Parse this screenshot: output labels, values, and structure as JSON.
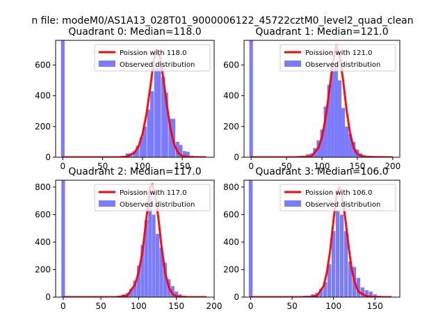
{
  "figure": {
    "suptitle": "n file: modeM0/AS1A13_028T01_9000006122_45722cztM0_level2_quad_clean"
  },
  "colors": {
    "bars": "#7b7bff",
    "curve": "#ff0000",
    "axes": "#000000"
  },
  "chart_data": [
    {
      "type": "bar",
      "title": "Quadrant 0: Median=118.0",
      "xlim": [
        -9,
        190
      ],
      "ylim": [
        0,
        760
      ],
      "xticks": [
        0,
        50,
        100,
        150
      ],
      "yticks": [
        0,
        200,
        400,
        600
      ],
      "legend_placement": "upper-right",
      "legend": [
        "Poission with 118.0",
        "Observed distribution"
      ],
      "bin_width": 4.5,
      "bars": [
        [
          0,
          760
        ],
        [
          76,
          5
        ],
        [
          81,
          25
        ],
        [
          85,
          25
        ],
        [
          90,
          40
        ],
        [
          94,
          75
        ],
        [
          99,
          130
        ],
        [
          103,
          200
        ],
        [
          108,
          310
        ],
        [
          112,
          430
        ],
        [
          117,
          580
        ],
        [
          121,
          580
        ],
        [
          126,
          520
        ],
        [
          130,
          420
        ],
        [
          135,
          250
        ],
        [
          139,
          250
        ],
        [
          144,
          100
        ],
        [
          148,
          80
        ],
        [
          153,
          40
        ],
        [
          157,
          35
        ],
        [
          162,
          10
        ],
        [
          166,
          5
        ],
        [
          171,
          2
        ]
      ],
      "curve": [
        [
          0,
          0
        ],
        [
          70,
          0
        ],
        [
          80,
          4
        ],
        [
          90,
          30
        ],
        [
          95,
          70
        ],
        [
          100,
          150
        ],
        [
          105,
          280
        ],
        [
          110,
          460
        ],
        [
          114,
          620
        ],
        [
          118,
          700
        ],
        [
          122,
          650
        ],
        [
          126,
          520
        ],
        [
          130,
          360
        ],
        [
          135,
          190
        ],
        [
          140,
          80
        ],
        [
          145,
          28
        ],
        [
          150,
          8
        ],
        [
          160,
          1
        ],
        [
          180,
          0
        ]
      ]
    },
    {
      "type": "bar",
      "title": "Quadrant 1: Median=121.0",
      "xlim": [
        -10,
        210
      ],
      "ylim": [
        0,
        760
      ],
      "xticks": [
        0,
        50,
        100,
        150,
        200
      ],
      "yticks": [
        0,
        200,
        400,
        600
      ],
      "legend_placement": "upper-right",
      "legend": [
        "Poission with 121.0",
        "Observed distribution"
      ],
      "bin_width": 5,
      "bars": [
        [
          0,
          760
        ],
        [
          60,
          4
        ],
        [
          65,
          8
        ],
        [
          70,
          10
        ],
        [
          75,
          10
        ],
        [
          80,
          20
        ],
        [
          85,
          25
        ],
        [
          90,
          60
        ],
        [
          95,
          110
        ],
        [
          100,
          180
        ],
        [
          105,
          330
        ],
        [
          110,
          470
        ],
        [
          115,
          560
        ],
        [
          120,
          620
        ],
        [
          125,
          500
        ],
        [
          130,
          320
        ],
        [
          135,
          200
        ],
        [
          140,
          150
        ],
        [
          145,
          100
        ],
        [
          150,
          50
        ],
        [
          155,
          25
        ],
        [
          160,
          15
        ],
        [
          165,
          10
        ],
        [
          170,
          8
        ],
        [
          175,
          5
        ]
      ],
      "curve": [
        [
          0,
          0
        ],
        [
          70,
          0
        ],
        [
          85,
          6
        ],
        [
          95,
          60
        ],
        [
          100,
          130
        ],
        [
          105,
          250
        ],
        [
          110,
          420
        ],
        [
          115,
          600
        ],
        [
          120,
          730
        ],
        [
          125,
          660
        ],
        [
          130,
          500
        ],
        [
          135,
          300
        ],
        [
          140,
          150
        ],
        [
          145,
          60
        ],
        [
          150,
          20
        ],
        [
          160,
          2
        ],
        [
          200,
          0
        ]
      ]
    },
    {
      "type": "bar",
      "title": "Quadrant 2: Median=117.0",
      "xlim": [
        -10,
        200
      ],
      "ylim": [
        0,
        850
      ],
      "xticks": [
        0,
        50,
        100,
        150,
        200
      ],
      "yticks": [
        0,
        200,
        400,
        600,
        800
      ],
      "legend_placement": "upper-right",
      "legend": [
        "Poission with 117.0",
        "Observed distribution"
      ],
      "bin_width": 4.7,
      "bars": [
        [
          0,
          850
        ],
        [
          75,
          5
        ],
        [
          80,
          20
        ],
        [
          85,
          30
        ],
        [
          90,
          60
        ],
        [
          95,
          120
        ],
        [
          100,
          230
        ],
        [
          105,
          380
        ],
        [
          110,
          560
        ],
        [
          115,
          780
        ],
        [
          120,
          600
        ],
        [
          125,
          460
        ],
        [
          130,
          360
        ],
        [
          135,
          250
        ],
        [
          140,
          130
        ],
        [
          145,
          80
        ],
        [
          150,
          40
        ],
        [
          155,
          20
        ],
        [
          160,
          10
        ],
        [
          165,
          5
        ]
      ],
      "curve": [
        [
          0,
          0
        ],
        [
          70,
          0
        ],
        [
          85,
          10
        ],
        [
          95,
          90
        ],
        [
          100,
          180
        ],
        [
          105,
          330
        ],
        [
          110,
          560
        ],
        [
          115,
          800
        ],
        [
          118,
          820
        ],
        [
          122,
          740
        ],
        [
          126,
          580
        ],
        [
          130,
          380
        ],
        [
          135,
          180
        ],
        [
          140,
          70
        ],
        [
          145,
          22
        ],
        [
          150,
          6
        ],
        [
          160,
          0
        ],
        [
          190,
          0
        ]
      ]
    },
    {
      "type": "bar",
      "title": "Quadrant 3: Median=106.0",
      "xlim": [
        -8,
        180
      ],
      "ylim": [
        0,
        850
      ],
      "xticks": [
        0,
        50,
        100,
        150
      ],
      "yticks": [
        0,
        200,
        400,
        600,
        800
      ],
      "legend_placement": "upper-right",
      "legend": [
        "Poission with 106.0",
        "Observed distribution"
      ],
      "bin_width": 4.5,
      "bars": [
        [
          0,
          850
        ],
        [
          65,
          10
        ],
        [
          70,
          10
        ],
        [
          75,
          20
        ],
        [
          80,
          30
        ],
        [
          85,
          60
        ],
        [
          90,
          110
        ],
        [
          95,
          240
        ],
        [
          100,
          480
        ],
        [
          105,
          630
        ],
        [
          110,
          600
        ],
        [
          115,
          480
        ],
        [
          120,
          260
        ],
        [
          125,
          220
        ],
        [
          130,
          140
        ],
        [
          135,
          70
        ],
        [
          140,
          50
        ],
        [
          145,
          40
        ],
        [
          150,
          20
        ],
        [
          155,
          10
        ],
        [
          160,
          5
        ]
      ],
      "curve": [
        [
          0,
          0
        ],
        [
          70,
          0
        ],
        [
          80,
          10
        ],
        [
          88,
          80
        ],
        [
          92,
          180
        ],
        [
          96,
          340
        ],
        [
          100,
          560
        ],
        [
          104,
          760
        ],
        [
          107,
          800
        ],
        [
          110,
          740
        ],
        [
          114,
          580
        ],
        [
          118,
          380
        ],
        [
          122,
          200
        ],
        [
          126,
          100
        ],
        [
          130,
          40
        ],
        [
          140,
          6
        ],
        [
          150,
          0
        ],
        [
          170,
          0
        ]
      ]
    }
  ]
}
